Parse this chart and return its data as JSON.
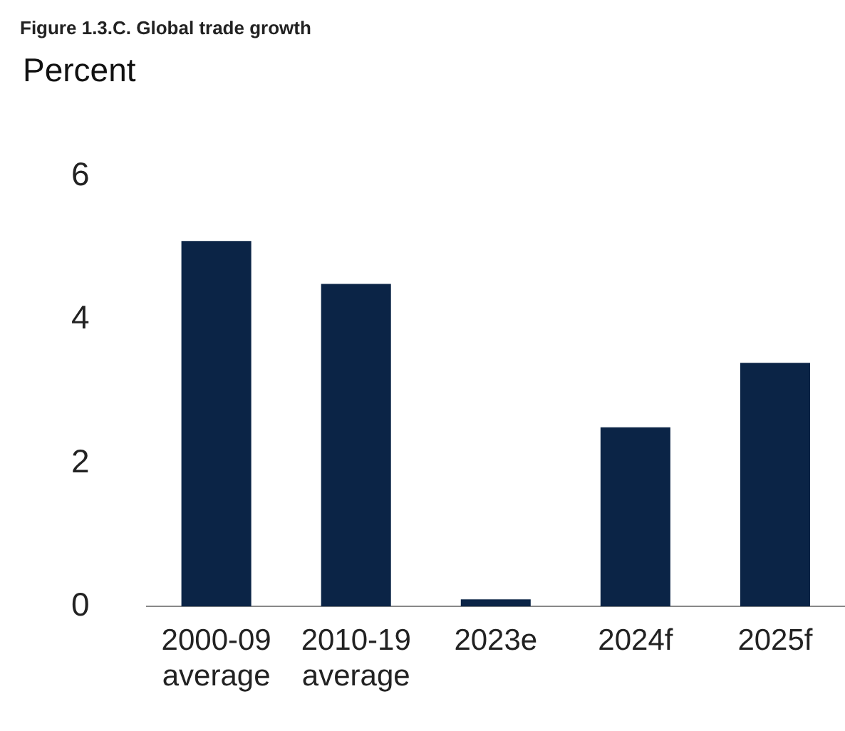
{
  "chart_data": {
    "type": "bar",
    "title": "Figure 1.3.C. Global trade growth",
    "ylabel": "Percent",
    "categories": [
      "2000-09\naverage",
      "2010-19\naverage",
      "2023e",
      "2024f",
      "2025f"
    ],
    "values": [
      5.1,
      4.5,
      0.1,
      2.5,
      3.4
    ],
    "color": "#0b2446",
    "ylim": [
      0,
      6
    ],
    "yticks": [
      0,
      2,
      4,
      6
    ],
    "grid": false,
    "legend": false
  }
}
